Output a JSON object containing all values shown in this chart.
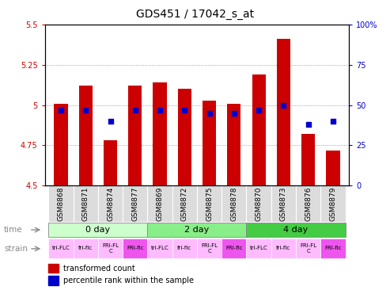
{
  "title": "GDS451 / 17042_s_at",
  "samples": [
    "GSM8868",
    "GSM8871",
    "GSM8874",
    "GSM8877",
    "GSM8869",
    "GSM8872",
    "GSM8875",
    "GSM8878",
    "GSM8870",
    "GSM8873",
    "GSM8876",
    "GSM8879"
  ],
  "transformed_counts": [
    5.01,
    5.12,
    4.78,
    5.12,
    5.14,
    5.1,
    5.03,
    5.01,
    5.19,
    5.41,
    4.82,
    4.72
  ],
  "percentile_ranks": [
    47,
    47,
    40,
    47,
    47,
    47,
    45,
    45,
    47,
    50,
    38,
    40
  ],
  "ymin": 4.5,
  "ymax": 5.5,
  "yticks": [
    4.5,
    4.75,
    5.0,
    5.25,
    5.5
  ],
  "ytick_labels": [
    "4.5",
    "4.75",
    "5",
    "5.25",
    "5.5"
  ],
  "y2min": 0,
  "y2max": 100,
  "y2ticks": [
    0,
    25,
    50,
    75,
    100
  ],
  "y2tick_labels": [
    "0",
    "25",
    "50",
    "75",
    "100%"
  ],
  "bar_color": "#cc0000",
  "dot_color": "#0000cc",
  "bar_width": 0.55,
  "time_groups": [
    {
      "label": "0 day",
      "start": 0,
      "end": 3,
      "color": "#ccffcc"
    },
    {
      "label": "2 day",
      "start": 4,
      "end": 7,
      "color": "#88ee88"
    },
    {
      "label": "4 day",
      "start": 8,
      "end": 11,
      "color": "#44cc44"
    }
  ],
  "strain_labels": [
    "tri-FLC",
    "fri-flc",
    "FRI-FL\nC",
    "FRI-flc",
    "tri-FLC",
    "fri-flc",
    "FRI-FL\nC",
    "FRI-flc",
    "tri-FLC",
    "fri-flc",
    "FRI-FL\nC",
    "FRI-flc"
  ],
  "strain_colors": [
    "#ffbbff",
    "#ffbbff",
    "#ffbbff",
    "#ee55ee",
    "#ffbbff",
    "#ffbbff",
    "#ffbbff",
    "#ee55ee",
    "#ffbbff",
    "#ffbbff",
    "#ffbbff",
    "#ee55ee"
  ],
  "legend_bar_label": "transformed count",
  "legend_dot_label": "percentile rank within the sample",
  "grid_color": "#888888",
  "dot_size": 18,
  "figwidth": 4.93,
  "figheight": 3.66,
  "dpi": 100
}
